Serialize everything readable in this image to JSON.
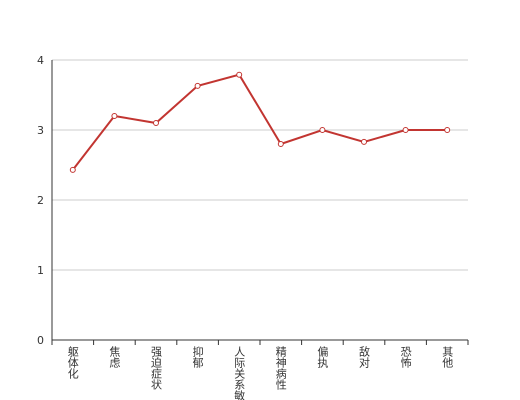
{
  "chart_data": {
    "type": "line",
    "categories": [
      "躯体化",
      "焦虑",
      "强迫症状",
      "抑郁",
      "人际关系敏感",
      "精神病性",
      "偏执",
      "敌对",
      "恐怖",
      "其他"
    ],
    "values": [
      2.43,
      3.2,
      3.1,
      3.63,
      3.79,
      2.8,
      3.0,
      2.83,
      3.0,
      3.0
    ],
    "color": "#c23531",
    "ylim": [
      0,
      4
    ],
    "yticks": [
      0,
      1,
      2,
      3,
      4
    ],
    "grid": true
  }
}
